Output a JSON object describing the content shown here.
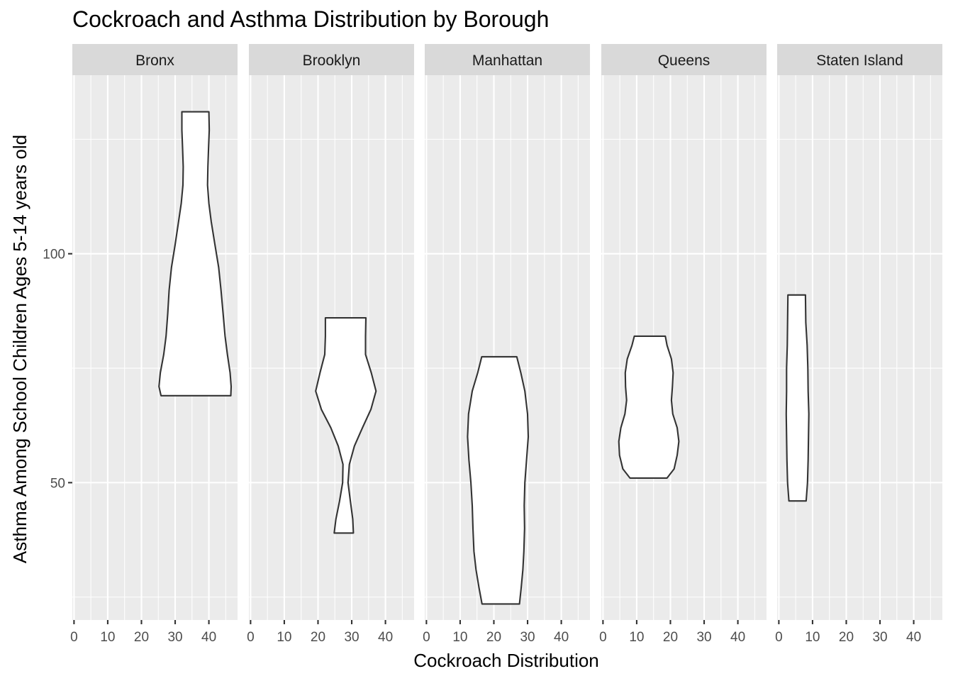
{
  "chart_data": {
    "type": "violin",
    "title": "Cockroach and Asthma Distribution by Borough",
    "xlabel": "Cockroach Distribution",
    "ylabel": "Asthma Among School Children Ages 5-14 years old",
    "xlim": [
      -0.5,
      48.5
    ],
    "ylim": [
      20,
      139
    ],
    "x_ticks": [
      0,
      10,
      20,
      30,
      40
    ],
    "y_ticks": [
      50,
      100
    ],
    "grid": true,
    "facets": [
      {
        "name": "Bronx",
        "y_range": [
          69,
          131
        ],
        "profile": [
          {
            "y": 69,
            "left": 25.8,
            "right": 46.5
          },
          {
            "y": 71,
            "left": 25.2,
            "right": 46.6
          },
          {
            "y": 74,
            "left": 25.6,
            "right": 46.3
          },
          {
            "y": 78,
            "left": 26.6,
            "right": 45.5
          },
          {
            "y": 82,
            "left": 27.3,
            "right": 44.8
          },
          {
            "y": 87,
            "left": 27.8,
            "right": 44.2
          },
          {
            "y": 92,
            "left": 28.2,
            "right": 43.6
          },
          {
            "y": 97,
            "left": 28.9,
            "right": 42.9
          },
          {
            "y": 102,
            "left": 30.0,
            "right": 41.8
          },
          {
            "y": 107,
            "left": 31.0,
            "right": 40.7
          },
          {
            "y": 111,
            "left": 31.8,
            "right": 40.0
          },
          {
            "y": 115,
            "left": 32.3,
            "right": 39.6
          },
          {
            "y": 119,
            "left": 32.4,
            "right": 39.7
          },
          {
            "y": 123,
            "left": 32.2,
            "right": 39.9
          },
          {
            "y": 127,
            "left": 32.0,
            "right": 40.1
          },
          {
            "y": 131,
            "left": 32.0,
            "right": 40.0
          }
        ]
      },
      {
        "name": "Brooklyn",
        "y_range": [
          39,
          86
        ],
        "profile": [
          {
            "y": 39,
            "left": 24.8,
            "right": 30.5
          },
          {
            "y": 42,
            "left": 25.3,
            "right": 30.3
          },
          {
            "y": 46,
            "left": 26.4,
            "right": 29.6
          },
          {
            "y": 50,
            "left": 27.3,
            "right": 28.9
          },
          {
            "y": 54,
            "left": 27.4,
            "right": 29.3
          },
          {
            "y": 58,
            "left": 26.0,
            "right": 30.8
          },
          {
            "y": 62,
            "left": 23.8,
            "right": 33.2
          },
          {
            "y": 66,
            "left": 21.0,
            "right": 35.7
          },
          {
            "y": 70,
            "left": 19.3,
            "right": 37.2
          },
          {
            "y": 74,
            "left": 20.6,
            "right": 35.8
          },
          {
            "y": 78,
            "left": 22.0,
            "right": 34.1
          },
          {
            "y": 82,
            "left": 22.2,
            "right": 34.1
          },
          {
            "y": 86,
            "left": 22.2,
            "right": 34.2
          }
        ]
      },
      {
        "name": "Manhattan",
        "y_range": [
          23.5,
          77.5
        ],
        "profile": [
          {
            "y": 23.5,
            "left": 16.5,
            "right": 27.6
          },
          {
            "y": 27,
            "left": 15.6,
            "right": 28.1
          },
          {
            "y": 31,
            "left": 14.7,
            "right": 28.6
          },
          {
            "y": 35,
            "left": 14.1,
            "right": 28.9
          },
          {
            "y": 40,
            "left": 13.8,
            "right": 29.1
          },
          {
            "y": 45,
            "left": 13.6,
            "right": 29.0
          },
          {
            "y": 50,
            "left": 13.2,
            "right": 29.2
          },
          {
            "y": 55,
            "left": 12.6,
            "right": 29.7
          },
          {
            "y": 60,
            "left": 12.2,
            "right": 30.2
          },
          {
            "y": 65,
            "left": 12.5,
            "right": 30.0
          },
          {
            "y": 70,
            "left": 13.6,
            "right": 29.2
          },
          {
            "y": 74,
            "left": 15.2,
            "right": 28.0
          },
          {
            "y": 77.5,
            "left": 16.4,
            "right": 26.8
          }
        ]
      },
      {
        "name": "Queens",
        "y_range": [
          51,
          82
        ],
        "profile": [
          {
            "y": 51,
            "left": 8.0,
            "right": 19.0
          },
          {
            "y": 53,
            "left": 5.9,
            "right": 21.1
          },
          {
            "y": 56,
            "left": 4.9,
            "right": 22.0
          },
          {
            "y": 59,
            "left": 4.7,
            "right": 22.5
          },
          {
            "y": 62,
            "left": 5.3,
            "right": 22.0
          },
          {
            "y": 65,
            "left": 6.5,
            "right": 20.7
          },
          {
            "y": 68,
            "left": 7.0,
            "right": 20.3
          },
          {
            "y": 71,
            "left": 6.7,
            "right": 20.6
          },
          {
            "y": 74,
            "left": 6.6,
            "right": 20.8
          },
          {
            "y": 77,
            "left": 7.2,
            "right": 20.3
          },
          {
            "y": 80,
            "left": 8.6,
            "right": 19.0
          },
          {
            "y": 82,
            "left": 9.3,
            "right": 18.5
          }
        ]
      },
      {
        "name": "Staten Island",
        "y_range": [
          46,
          91
        ],
        "profile": [
          {
            "y": 46,
            "left": 3.0,
            "right": 8.1
          },
          {
            "y": 50,
            "left": 2.6,
            "right": 8.5
          },
          {
            "y": 55,
            "left": 2.4,
            "right": 8.7
          },
          {
            "y": 60,
            "left": 2.3,
            "right": 8.8
          },
          {
            "y": 65,
            "left": 2.2,
            "right": 8.9
          },
          {
            "y": 70,
            "left": 2.3,
            "right": 8.7
          },
          {
            "y": 75,
            "left": 2.3,
            "right": 8.6
          },
          {
            "y": 80,
            "left": 2.5,
            "right": 8.4
          },
          {
            "y": 85,
            "left": 2.6,
            "right": 8.0
          },
          {
            "y": 91,
            "left": 2.7,
            "right": 7.9
          }
        ]
      }
    ]
  }
}
